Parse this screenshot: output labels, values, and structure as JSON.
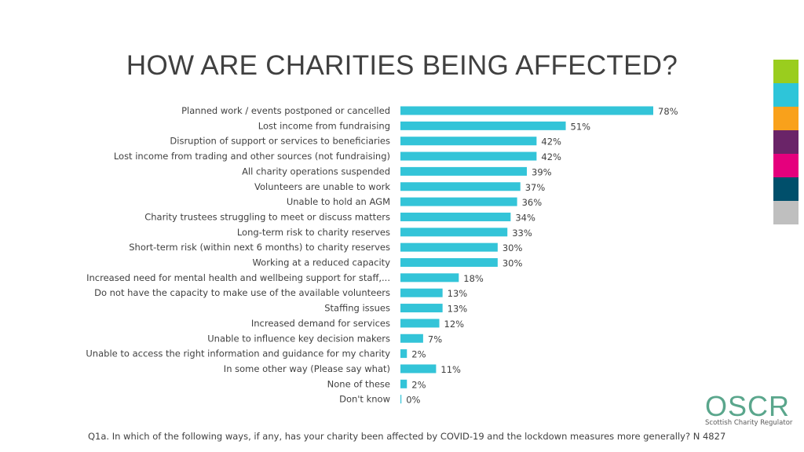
{
  "colors": {
    "bar": "#33c4d8",
    "text": "#404040",
    "stripes": [
      "#9acd1e",
      "#2ec5d9",
      "#f9a11b",
      "#6a2468",
      "#e5007d",
      "#004f6b",
      "#bfbfbf"
    ]
  },
  "title": "HOW ARE CHARITIES BEING AFFECTED?",
  "footnote": "Q1a. In which of the following ways, if any, has your charity been affected by COVID-19 and the lockdown measures more generally? N 4827",
  "logo": {
    "name": "OSCR",
    "tagline": "Scottish Charity Regulator"
  },
  "chart_data": {
    "type": "bar",
    "orientation": "horizontal",
    "unit": "%",
    "xlim": [
      0,
      78
    ],
    "grid": false,
    "categories": [
      "Planned work / events postponed or cancelled",
      "Lost income from fundraising",
      "Disruption of support or services to beneficiaries",
      "Lost income from trading and other sources (not fundraising)",
      "All charity operations suspended",
      "Volunteers are unable to work",
      "Unable to hold an AGM",
      "Charity trustees struggling to meet or discuss matters",
      "Long-term risk to charity reserves",
      "Short-term risk (within next 6 months) to charity reserves",
      "Working at a reduced capacity",
      "Increased need for mental health and wellbeing support for staff,...",
      "Do not have the capacity to make use of the available volunteers",
      "Staffing issues",
      "Increased demand for services",
      "Unable to influence key decision makers",
      "Unable to access the right information and guidance for my charity",
      "In some other way (Please say what)",
      "None of these",
      "Don't know"
    ],
    "values": [
      78,
      51,
      42,
      42,
      39,
      37,
      36,
      34,
      33,
      30,
      30,
      18,
      13,
      13,
      12,
      7,
      2,
      11,
      2,
      0
    ],
    "value_labels": [
      "78%",
      "51%",
      "42%",
      "42%",
      "39%",
      "37%",
      "36%",
      "34%",
      "33%",
      "30%",
      "30%",
      "18%",
      "13%",
      "13%",
      "12%",
      "7%",
      "2%",
      "11%",
      "2%",
      "0%"
    ]
  }
}
